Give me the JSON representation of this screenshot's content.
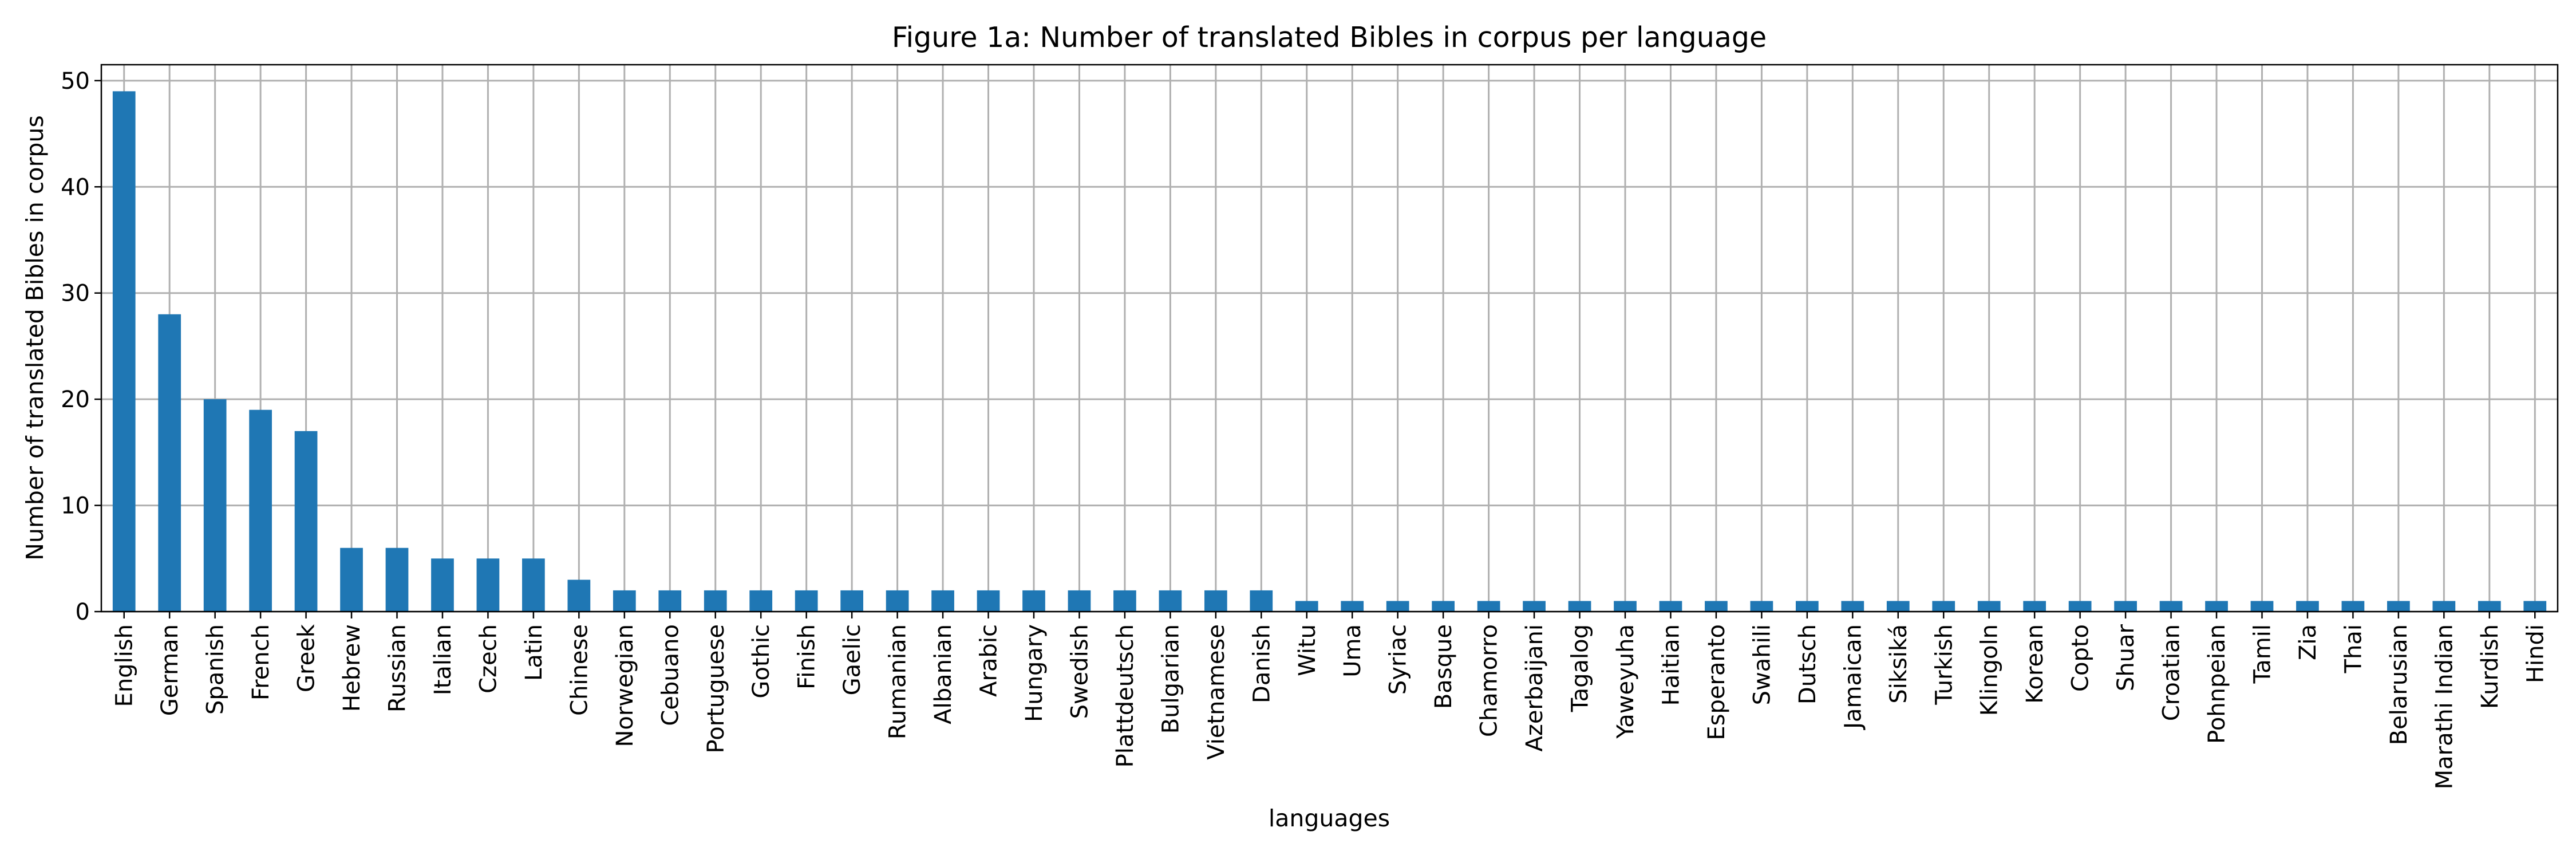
{
  "chart_data": {
    "type": "bar",
    "title": "Figure 1a: Number of translated Bibles in corpus per language",
    "xlabel": "languages",
    "ylabel": "Number of translated Bibles in corpus",
    "ylim": [
      0,
      51.5
    ],
    "yticks": [
      0,
      10,
      20,
      30,
      40,
      50
    ],
    "grid": true,
    "bar_color": "#1f77b4",
    "categories": [
      "English",
      "German",
      "Spanish",
      "French",
      "Greek",
      "Hebrew",
      "Russian",
      "Italian",
      "Czech",
      "Latin",
      "Chinese",
      "Norwegian",
      "Cebuano",
      "Portuguese",
      "Gothic",
      "Finish",
      "Gaelic",
      "Rumanian",
      "Albanian",
      "Arabic",
      "Hungary",
      "Swedish",
      "Plattdeutsch",
      "Bulgarian",
      "Vietnamese",
      "Danish",
      "Witu",
      "Uma",
      "Syriac",
      "Basque",
      "Chamorro",
      "Azerbaijani",
      "Tagalog",
      "Yaweyuha",
      "Haitian",
      "Esperanto",
      "Swahili",
      "Dutsch",
      "Jamaican",
      "Siksiká",
      "Turkish",
      "Klingoln",
      "Korean",
      "Copto",
      "Shuar",
      "Croatian",
      "Pohnpeian",
      "Tamil",
      "Zia",
      "Thai",
      "Belarusian",
      "Marathi Indian",
      "Kurdish",
      "Hindi"
    ],
    "values": [
      49,
      28,
      20,
      19,
      17,
      6,
      6,
      5,
      5,
      5,
      3,
      2,
      2,
      2,
      2,
      2,
      2,
      2,
      2,
      2,
      2,
      2,
      2,
      2,
      2,
      2,
      1,
      1,
      1,
      1,
      1,
      1,
      1,
      1,
      1,
      1,
      1,
      1,
      1,
      1,
      1,
      1,
      1,
      1,
      1,
      1,
      1,
      1,
      1,
      1,
      1,
      1,
      1,
      1
    ]
  }
}
